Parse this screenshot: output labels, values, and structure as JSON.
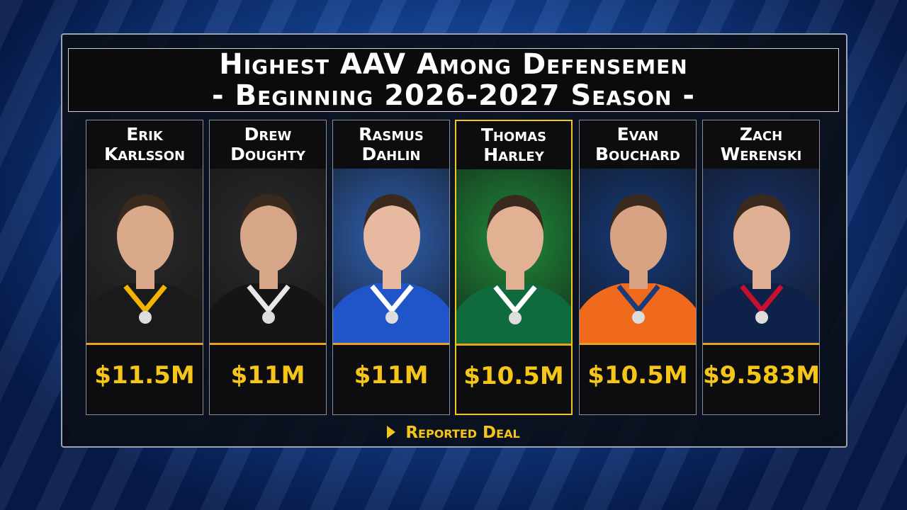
{
  "header": {
    "title": "Highest AAV Among Defensemen",
    "subtitle": "- Beginning 2026-2027 Season -"
  },
  "players": [
    {
      "first": "Erik",
      "last": "Karlsson",
      "aav": "$11.5M"
    },
    {
      "first": "Drew",
      "last": "Doughty",
      "aav": "$11M"
    },
    {
      "first": "Rasmus",
      "last": "Dahlin",
      "aav": "$11M"
    },
    {
      "first": "Thomas",
      "last": "Harley",
      "aav": "$10.5M"
    },
    {
      "first": "Evan",
      "last": "Bouchard",
      "aav": "$10.5M"
    },
    {
      "first": "Zach",
      "last": "Werenski",
      "aav": "$9.583M"
    }
  ],
  "footer": {
    "note": "Reported Deal"
  }
}
